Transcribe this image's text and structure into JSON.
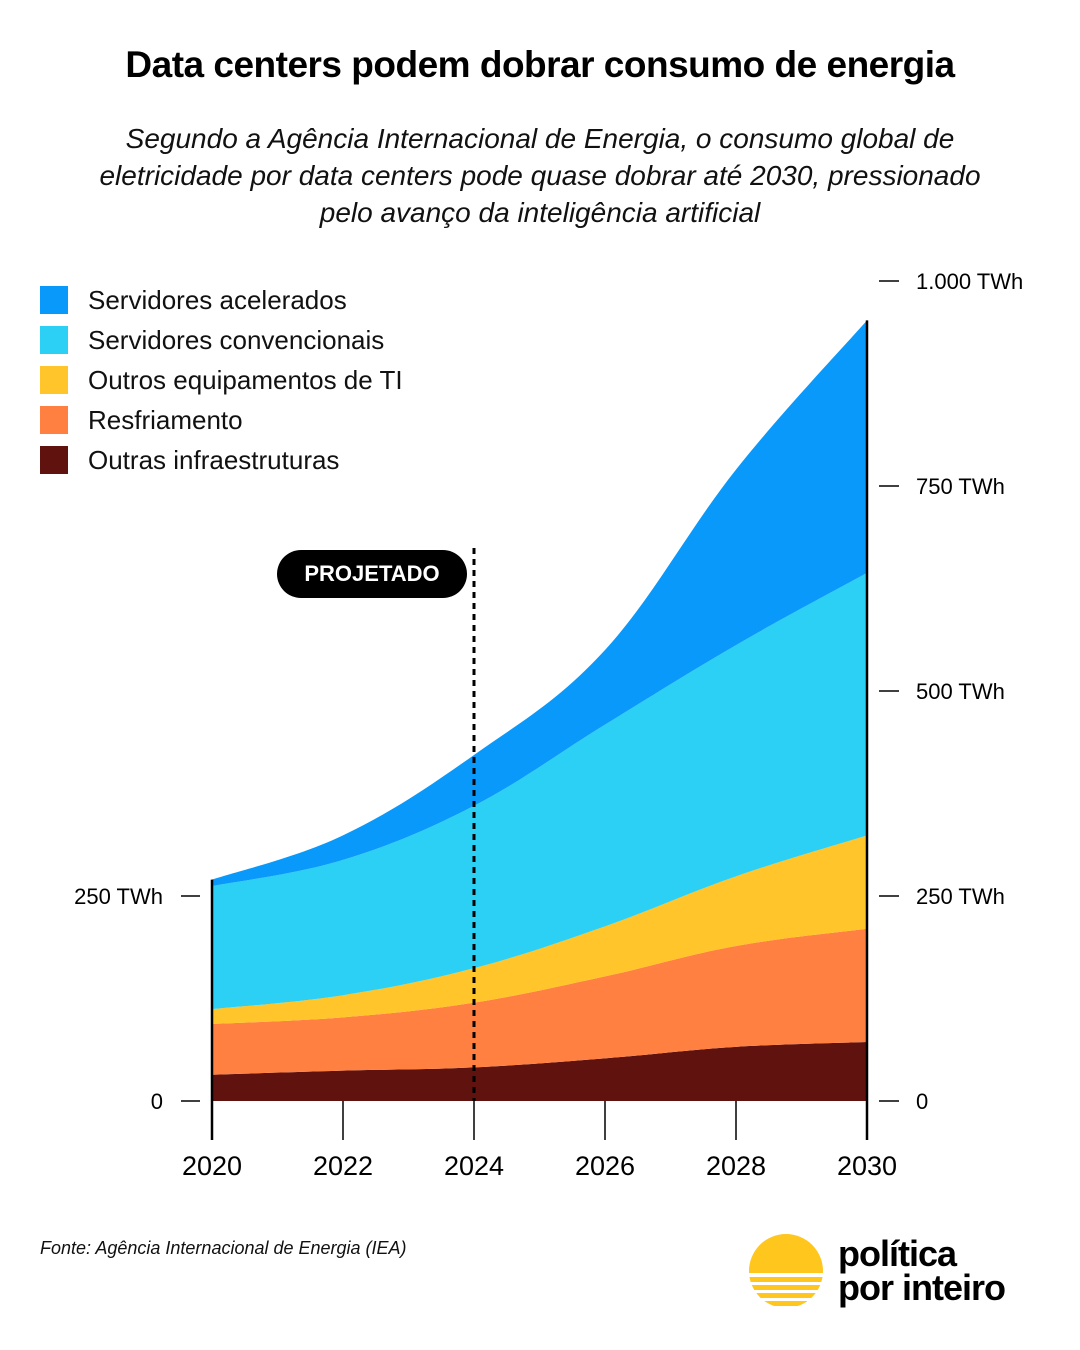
{
  "header": {
    "title": "Data centers podem dobrar consumo de energia",
    "subtitle": "Segundo a Agência Internacional de Energia, o consumo global de eletricidade por data centers pode quase dobrar até 2030, pressionado pelo avanço da inteligência artificial"
  },
  "annotation": {
    "projected_label": "PROJETADO",
    "projected_from_year": 2024
  },
  "footer": {
    "source": "Fonte: Agência Internacional de Energia (IEA)",
    "logo_line1": "política",
    "logo_line2": "por inteiro",
    "logo_color": "#FFC61E"
  },
  "chart_data": {
    "type": "area",
    "stacked": true,
    "title": "Data centers podem dobrar consumo de energia",
    "xlabel": "",
    "ylabel": "TWh",
    "x": [
      2020,
      2022,
      2024,
      2026,
      2028,
      2030
    ],
    "x_tick_labels": [
      "2020",
      "2022",
      "2024",
      "2026",
      "2028",
      "2030"
    ],
    "ylim": [
      0,
      1000
    ],
    "left_axis_ticks": [
      {
        "value": 0,
        "label": "0"
      },
      {
        "value": 250,
        "label": "250 TWh"
      }
    ],
    "right_axis_ticks": [
      {
        "value": 0,
        "label": "0"
      },
      {
        "value": 250,
        "label": "250 TWh"
      },
      {
        "value": 500,
        "label": "500 TWh"
      },
      {
        "value": 750,
        "label": "750 TWh"
      },
      {
        "value": 1000,
        "label": "1.000 TWh"
      }
    ],
    "grid": false,
    "legend_position": "top-left",
    "series": [
      {
        "name": "Outras infraestruturas",
        "color": "#5F120E",
        "values": [
          32,
          37,
          41,
          52,
          66,
          72
        ]
      },
      {
        "name": "Resfriamento",
        "color": "#FF8040",
        "values": [
          62,
          65,
          79,
          100,
          123,
          138
        ]
      },
      {
        "name": "Outros equipamentos de TI",
        "color": "#FFC52A",
        "values": [
          18,
          27,
          42,
          61,
          85,
          114
        ]
      },
      {
        "name": "Servidores convencionais",
        "color": "#2CD0F5",
        "values": [
          150,
          165,
          198,
          246,
          282,
          320
        ]
      },
      {
        "name": "Servidores acelerados",
        "color": "#0899FA",
        "values": [
          8,
          30,
          62,
          91,
          214,
          308
        ]
      }
    ],
    "legend_order": [
      "Servidores acelerados",
      "Servidores convencionais",
      "Outros equipamentos de TI",
      "Resfriamento",
      "Outras infraestruturas"
    ]
  }
}
